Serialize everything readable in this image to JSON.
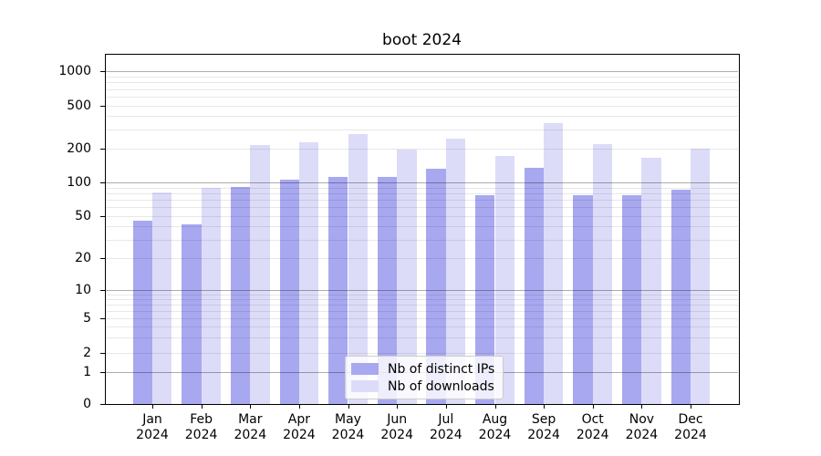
{
  "chart_data": {
    "type": "bar",
    "title": "boot 2024",
    "scale": "symlog",
    "grid": true,
    "legend_position": "lower center",
    "year": "2024",
    "months": [
      "Jan",
      "Feb",
      "Mar",
      "Apr",
      "May",
      "Jun",
      "Jul",
      "Aug",
      "Sep",
      "Oct",
      "Nov",
      "Dec"
    ],
    "categories": [
      "Jan 2024",
      "Feb 2024",
      "Mar 2024",
      "Apr 2024",
      "May 2024",
      "Jun 2024",
      "Jul 2024",
      "Aug 2024",
      "Sep 2024",
      "Oct 2024",
      "Nov 2024",
      "Dec 2024"
    ],
    "yticks": [
      1000,
      500,
      200,
      100,
      50,
      20,
      10,
      5,
      2,
      1,
      0
    ],
    "ylim": [
      0,
      1400
    ],
    "series": [
      {
        "name": "Nb of distinct IPs",
        "color": "#a8a8f0",
        "values": [
          45,
          42,
          92,
          106,
          111,
          111,
          133,
          77,
          134,
          77,
          77,
          86
        ]
      },
      {
        "name": "Nb of downloads",
        "color": "#dcdcf8",
        "values": [
          81,
          90,
          216,
          228,
          275,
          195,
          246,
          172,
          345,
          222,
          167,
          199
        ]
      }
    ]
  }
}
